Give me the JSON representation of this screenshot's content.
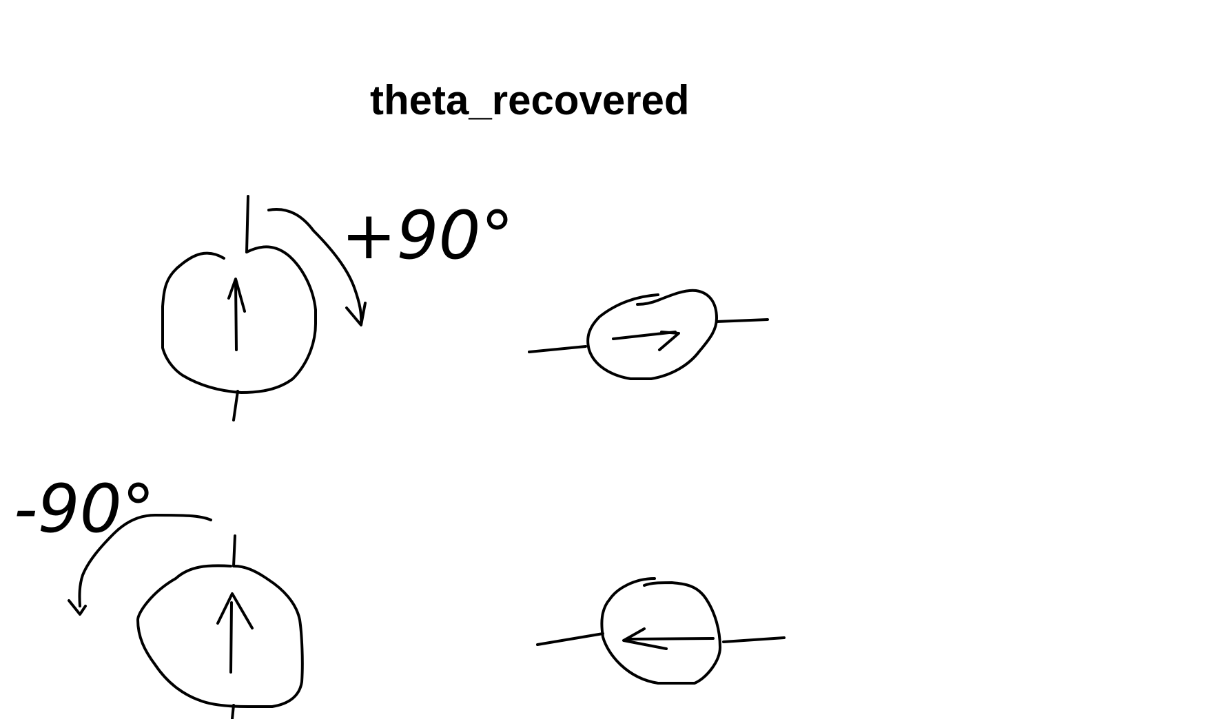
{
  "title": "theta_recovered",
  "annotations": {
    "clockwise_angle": "+90°",
    "counterclockwise_angle": "-90°"
  },
  "colors": {
    "background": "#ffffff",
    "ink": "#000000"
  }
}
